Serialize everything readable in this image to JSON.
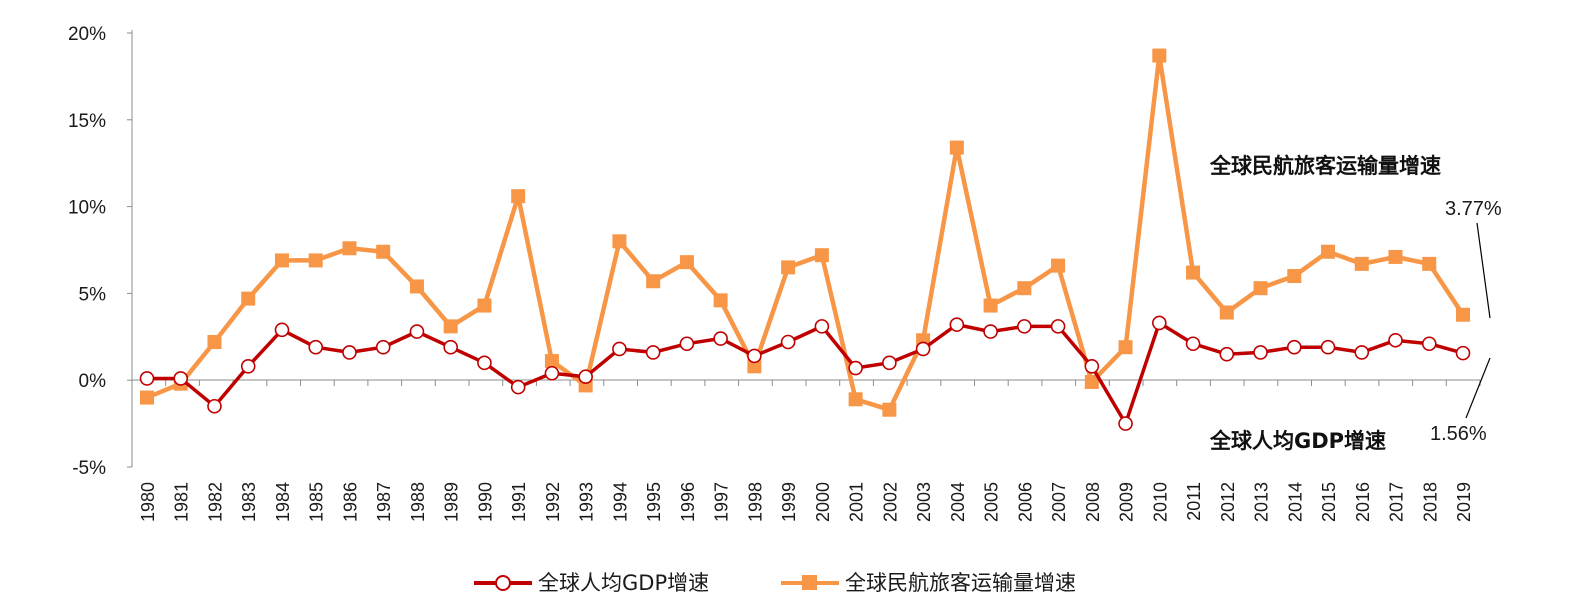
{
  "chart_data": {
    "type": "line",
    "title": "",
    "xlabel": "",
    "ylabel": "",
    "ylim": [
      -5,
      20
    ],
    "y_ticks": [
      -5,
      0,
      5,
      10,
      15,
      20
    ],
    "y_tick_labels": [
      "-5%",
      "0%",
      "5%",
      "10%",
      "15%",
      "20%"
    ],
    "grid": false,
    "legend_position": "bottom",
    "categories": [
      "1980",
      "1981",
      "1982",
      "1983",
      "1984",
      "1985",
      "1986",
      "1987",
      "1988",
      "1989",
      "1990",
      "1991",
      "1992",
      "1993",
      "1994",
      "1995",
      "1996",
      "1997",
      "1998",
      "1999",
      "2000",
      "2001",
      "2002",
      "2003",
      "2004",
      "2005",
      "2006",
      "2007",
      "2008",
      "2009",
      "2010",
      "2011",
      "2012",
      "2013",
      "2014",
      "2015",
      "2016",
      "2017",
      "2018",
      "2019"
    ],
    "series": [
      {
        "name": "全球人均GDP增速",
        "color": "#c00000",
        "marker": "hollow-circle",
        "values": [
          0.1,
          0.1,
          -1.5,
          0.8,
          2.9,
          1.9,
          1.6,
          1.9,
          2.8,
          1.9,
          1.0,
          -0.4,
          0.4,
          0.2,
          1.8,
          1.6,
          2.1,
          2.4,
          1.4,
          2.2,
          3.1,
          0.7,
          1.0,
          1.8,
          3.2,
          2.8,
          3.1,
          3.1,
          0.8,
          -2.5,
          3.3,
          2.1,
          1.5,
          1.6,
          1.9,
          1.9,
          1.6,
          2.3,
          2.1,
          1.56
        ]
      },
      {
        "name": "全球民航旅客运输量增速",
        "color": "#f79646",
        "marker": "square",
        "values": [
          -1.0,
          -0.2,
          2.2,
          4.7,
          6.9,
          6.9,
          7.6,
          7.4,
          5.4,
          3.1,
          4.3,
          10.6,
          1.1,
          -0.3,
          8.0,
          5.7,
          6.8,
          4.6,
          0.8,
          6.5,
          7.2,
          -1.1,
          -1.7,
          2.3,
          13.4,
          4.3,
          5.3,
          6.6,
          -0.1,
          1.9,
          18.7,
          6.2,
          3.9,
          5.3,
          6.0,
          7.4,
          6.7,
          7.1,
          6.7,
          3.77
        ]
      }
    ],
    "annotations": {
      "passenger_series_label": "全球民航旅客运输量增速",
      "gdp_series_label": "全球人均GDP增速",
      "passenger_last_value": "3.77%",
      "gdp_last_value": "1.56%"
    },
    "legend": [
      "全球人均GDP增速",
      "全球民航旅客运输量增速"
    ]
  }
}
